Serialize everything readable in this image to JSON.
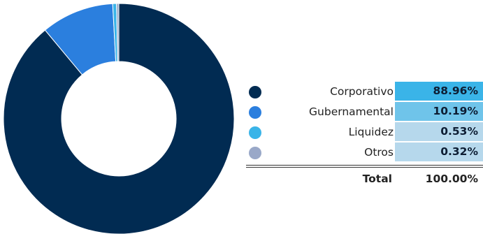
{
  "chart_data": {
    "type": "pie",
    "style": "donut",
    "categories": [
      "Corporativo",
      "Gubernamental",
      "Liquidez",
      "Otros"
    ],
    "values": [
      88.96,
      10.19,
      0.53,
      0.32
    ],
    "value_labels": [
      "88.96%",
      "10.19%",
      "0.53%",
      "0.32%"
    ],
    "colors": [
      "#012b52",
      "#2b7fde",
      "#3ab4e8",
      "#99a8c8"
    ],
    "value_cell_colors": [
      "#3ab4e8",
      "#6fc4ea",
      "#b6d8ec",
      "#b6d8ec"
    ],
    "total_label": "Total",
    "total_value": "100.00%",
    "legend_position": "right"
  }
}
